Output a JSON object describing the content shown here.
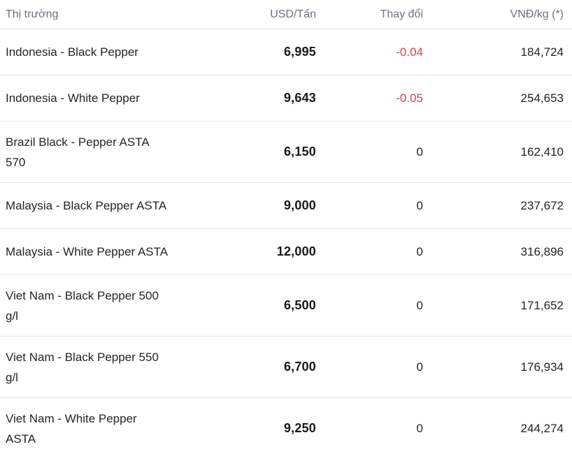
{
  "colors": {
    "background": "#ffffff",
    "header_text": "#6b7280",
    "body_text": "#212529",
    "strong_text": "#17191f",
    "negative_change": "#e03e48",
    "divider": "#e8e8e9"
  },
  "table": {
    "columns": [
      {
        "label": "Thị trường"
      },
      {
        "label": "USD/Tấn"
      },
      {
        "label": "Thay đổi"
      },
      {
        "label": "VNĐ/kg (*)"
      }
    ],
    "rows": [
      {
        "market": "Indonesia - Black Pepper",
        "usd": "6,995",
        "change": "-0.04",
        "vnd": "184,724",
        "negative": true
      },
      {
        "market": "Indonesia - White Pepper",
        "usd": "9,643",
        "change": "-0.05",
        "vnd": "254,653",
        "negative": true
      },
      {
        "market": "Brazil Black - Pepper ASTA\n570",
        "usd": "6,150",
        "change": "0",
        "vnd": "162,410",
        "negative": false
      },
      {
        "market": "Malaysia - Black Pepper ASTA",
        "usd": "9,000",
        "change": "0",
        "vnd": "237,672",
        "negative": false
      },
      {
        "market": "Malaysia - White Pepper ASTA",
        "usd": "12,000",
        "change": "0",
        "vnd": "316,896",
        "negative": false
      },
      {
        "market": "Viet Nam - Black Pepper 500\ng/l",
        "usd": "6,500",
        "change": "0",
        "vnd": "171,652",
        "negative": false
      },
      {
        "market": "Viet Nam - Black Pepper 550\ng/l",
        "usd": "6,700",
        "change": "0",
        "vnd": "176,934",
        "negative": false
      },
      {
        "market": "Viet Nam - White Pepper\nASTA",
        "usd": "9,250",
        "change": "0",
        "vnd": "244,274",
        "negative": false
      }
    ]
  }
}
